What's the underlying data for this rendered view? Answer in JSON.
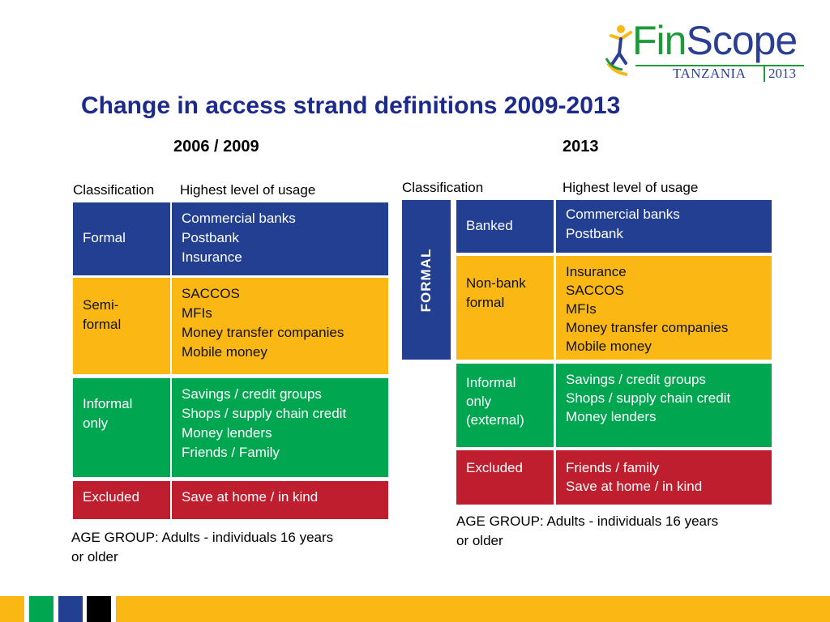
{
  "logo": {
    "fin": "Fin",
    "scope": "Scope",
    "country": "TANZANIA",
    "year": "2013"
  },
  "title": "Change in access strand definitions 2009-2013",
  "left": {
    "year_label": "2006 / 2009",
    "col_classification": "Classification",
    "col_usage": "Highest level of usage",
    "rows": [
      {
        "class_lines": [
          "Formal"
        ],
        "usage_lines": [
          "Commercial banks",
          "Postbank",
          "Insurance"
        ],
        "color": "#233f91"
      },
      {
        "class_lines": [
          "Semi-",
          "formal"
        ],
        "usage_lines": [
          "SACCOS",
          "MFIs",
          "Money transfer companies",
          "Mobile money"
        ],
        "color": "#fbb814"
      },
      {
        "class_lines": [
          "Informal",
          "only"
        ],
        "usage_lines": [
          "Savings / credit groups",
          "Shops / supply chain credit",
          "Money lenders",
          "Friends / Family"
        ],
        "color": "#00a650"
      },
      {
        "class_lines": [
          "Excluded"
        ],
        "usage_lines": [
          "Save at home / in kind"
        ],
        "color": "#be1e2d"
      }
    ],
    "note_lines": [
      "AGE GROUP: Adults - individuals 16 years",
      "or older"
    ]
  },
  "right": {
    "year_label": "2013",
    "col_classification": "Classification",
    "col_usage": "Highest level of usage",
    "formal_label": "FORMAL",
    "rows": [
      {
        "class_lines": [
          "Banked"
        ],
        "usage_lines": [
          "Commercial banks",
          "Postbank"
        ],
        "color": "#233f91"
      },
      {
        "class_lines": [
          "Non-bank",
          "formal"
        ],
        "usage_lines": [
          "Insurance",
          "SACCOS",
          "MFIs",
          "Money transfer companies",
          "Mobile money"
        ],
        "color": "#fbb814"
      },
      {
        "class_lines": [
          "Informal",
          "only",
          "(external)"
        ],
        "usage_lines": [
          "Savings / credit groups",
          "Shops / supply chain credit",
          "Money lenders"
        ],
        "color": "#00a650"
      },
      {
        "class_lines": [
          "Excluded"
        ],
        "usage_lines": [
          "Friends / family",
          "Save at home / in kind"
        ],
        "color": "#be1e2d"
      }
    ],
    "note_lines": [
      "AGE GROUP: Adults - individuals 16 years",
      "or older"
    ]
  },
  "footer_colors": [
    "#fbb814",
    "#00a650",
    "#233f91",
    "#000000",
    "#fbb814"
  ]
}
